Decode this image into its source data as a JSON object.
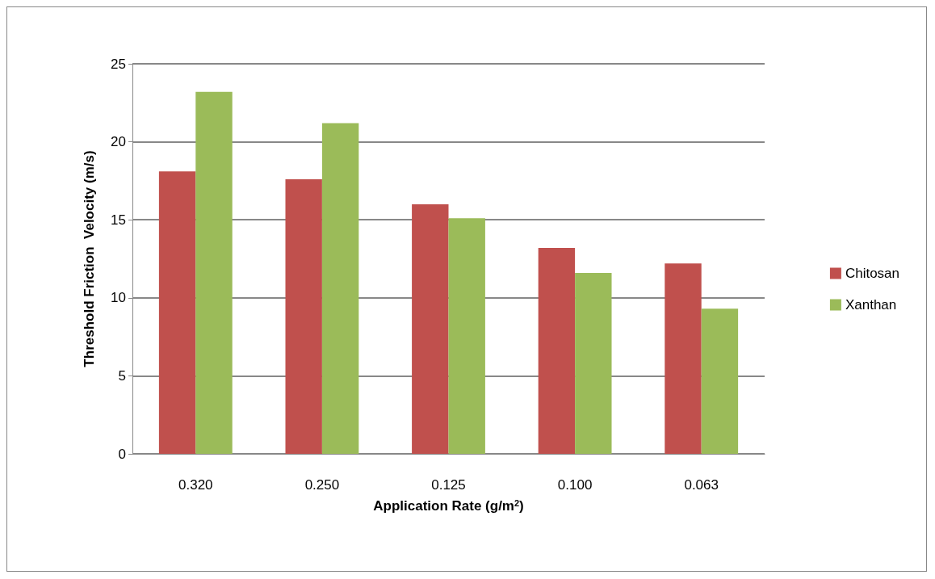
{
  "chart_data": {
    "type": "bar",
    "xlabel": "Application Rate (g/m$^{2}$)",
    "ylabel": "Threshold Friction  Velocity (m/s)",
    "categories": [
      "0.320",
      "0.250",
      "0.125",
      "0.100",
      "0.063"
    ],
    "series": [
      {
        "name": "Chitosan",
        "color": "#c0504d",
        "values": [
          18.1,
          17.6,
          16.0,
          13.2,
          12.2
        ]
      },
      {
        "name": "Xanthan",
        "color": "#9bbb59",
        "values": [
          23.2,
          21.2,
          15.1,
          11.6,
          9.3
        ]
      }
    ],
    "ylim": [
      0,
      25
    ],
    "yticks": [
      0,
      5,
      10,
      15,
      20,
      25
    ],
    "grid": "y",
    "legend": "right"
  }
}
